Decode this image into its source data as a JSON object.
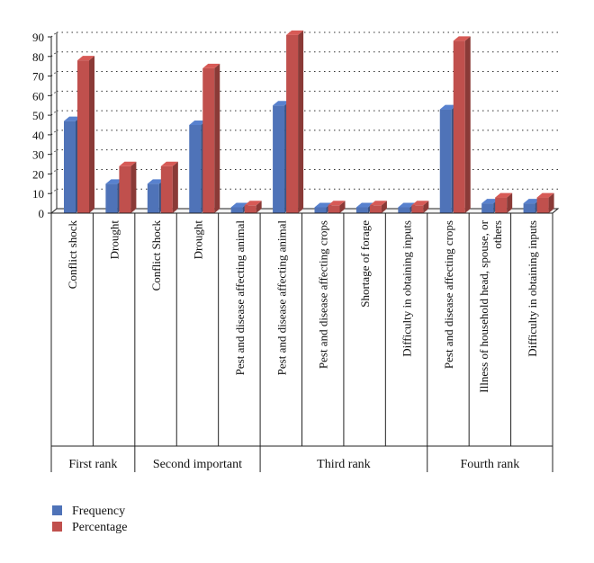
{
  "chart_data": {
    "type": "bar",
    "ylim": [
      0,
      90
    ],
    "yticks": [
      0,
      10,
      20,
      30,
      40,
      50,
      60,
      70,
      80,
      90
    ],
    "grid": true,
    "legend_position": "bottom-left",
    "categories": [
      [
        "Conflict shock"
      ],
      [
        "Drought"
      ],
      [
        "Conflict Shock"
      ],
      [
        "Drought"
      ],
      [
        "Pest and disease affecting animal"
      ],
      [
        "Pest and disease affecting animal"
      ],
      [
        "Pest and disease affecting crops"
      ],
      [
        "Shortage of forage"
      ],
      [
        "Difficulty in obtaining inputs"
      ],
      [
        "Pest and disease affecting crops"
      ],
      [
        "Illness of household head, spouse, or",
        "others"
      ],
      [
        "Difficulty in obtaining inputs"
      ]
    ],
    "groups": [
      {
        "label": "First rank",
        "count": 2
      },
      {
        "label": "Second important",
        "count": 3
      },
      {
        "label": "Third rank",
        "count": 4
      },
      {
        "label": "Fourth rank",
        "count": 3
      }
    ],
    "series": [
      {
        "name": "Frequency",
        "color": "#4f73b8",
        "values": [
          47,
          15,
          15,
          45,
          3,
          55,
          3,
          3,
          3,
          53,
          5,
          5
        ]
      },
      {
        "name": "Percentage",
        "color": "#c0504d",
        "values": [
          78,
          24,
          24,
          74,
          4,
          91,
          4,
          4,
          4,
          88,
          8,
          8
        ]
      }
    ]
  }
}
